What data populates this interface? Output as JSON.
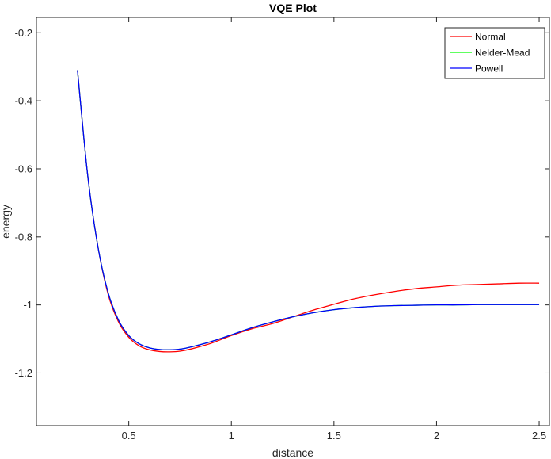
{
  "chart_data": {
    "type": "line",
    "title": "VQE Plot",
    "xlabel": "distance",
    "ylabel": "energy",
    "xlim": [
      0.05,
      2.55
    ],
    "ylim": [
      -1.355,
      -0.155
    ],
    "xticks": [
      0.5,
      1,
      1.5,
      2,
      2.5
    ],
    "xtick_labels": [
      "0.5",
      "1",
      "1.5",
      "2",
      "2.5"
    ],
    "yticks": [
      -0.2,
      -0.4,
      -0.6,
      -0.8,
      -1,
      -1.2
    ],
    "ytick_labels": [
      "-0.2",
      "-0.4",
      "-0.6",
      "-0.8",
      "-1",
      "-1.2"
    ],
    "grid": false,
    "legend_position": "top-right",
    "series": [
      {
        "name": "Normal",
        "color": "#ff0000",
        "x": [
          0.25,
          0.3,
          0.35,
          0.4,
          0.45,
          0.5,
          0.55,
          0.6,
          0.65,
          0.7,
          0.75,
          0.8,
          0.9,
          1.0,
          1.1,
          1.2,
          1.3,
          1.4,
          1.5,
          1.6,
          1.7,
          1.8,
          1.9,
          2.0,
          2.1,
          2.2,
          2.3,
          2.4,
          2.5
        ],
        "y": [
          -0.31,
          -0.62,
          -0.83,
          -0.97,
          -1.05,
          -1.095,
          -1.12,
          -1.132,
          -1.137,
          -1.138,
          -1.136,
          -1.13,
          -1.113,
          -1.09,
          -1.07,
          -1.055,
          -1.035,
          -1.015,
          -0.998,
          -0.982,
          -0.97,
          -0.96,
          -0.952,
          -0.947,
          -0.942,
          -0.94,
          -0.938,
          -0.936,
          -0.936
        ]
      },
      {
        "name": "Nelder-Mead",
        "color": "#00ff00",
        "x": [
          0.25,
          0.3,
          0.35,
          0.4,
          0.45,
          0.5,
          0.55,
          0.6,
          0.65,
          0.7,
          0.75,
          0.8,
          0.9,
          1.0,
          1.1,
          1.2,
          1.3,
          1.4,
          1.5,
          1.6,
          1.7,
          1.8,
          1.9,
          2.0,
          2.1,
          2.2,
          2.3,
          2.4,
          2.5
        ],
        "y": [
          -0.31,
          -0.62,
          -0.83,
          -0.965,
          -1.045,
          -1.09,
          -1.114,
          -1.126,
          -1.131,
          -1.132,
          -1.13,
          -1.124,
          -1.108,
          -1.088,
          -1.067,
          -1.05,
          -1.035,
          -1.023,
          -1.014,
          -1.008,
          -1.004,
          -1.002,
          -1.001,
          -1.0,
          -1.0,
          -0.999,
          -0.999,
          -0.999,
          -0.999
        ]
      },
      {
        "name": "Powell",
        "color": "#0000ff",
        "x": [
          0.25,
          0.3,
          0.35,
          0.4,
          0.45,
          0.5,
          0.55,
          0.6,
          0.65,
          0.7,
          0.75,
          0.8,
          0.9,
          1.0,
          1.1,
          1.2,
          1.3,
          1.4,
          1.5,
          1.6,
          1.7,
          1.8,
          1.9,
          2.0,
          2.1,
          2.2,
          2.3,
          2.4,
          2.5
        ],
        "y": [
          -0.31,
          -0.62,
          -0.83,
          -0.965,
          -1.045,
          -1.09,
          -1.114,
          -1.126,
          -1.131,
          -1.132,
          -1.13,
          -1.124,
          -1.108,
          -1.088,
          -1.067,
          -1.05,
          -1.035,
          -1.023,
          -1.014,
          -1.008,
          -1.004,
          -1.002,
          -1.001,
          -1.0,
          -1.0,
          -0.999,
          -0.999,
          -0.999,
          -0.999
        ]
      }
    ]
  }
}
